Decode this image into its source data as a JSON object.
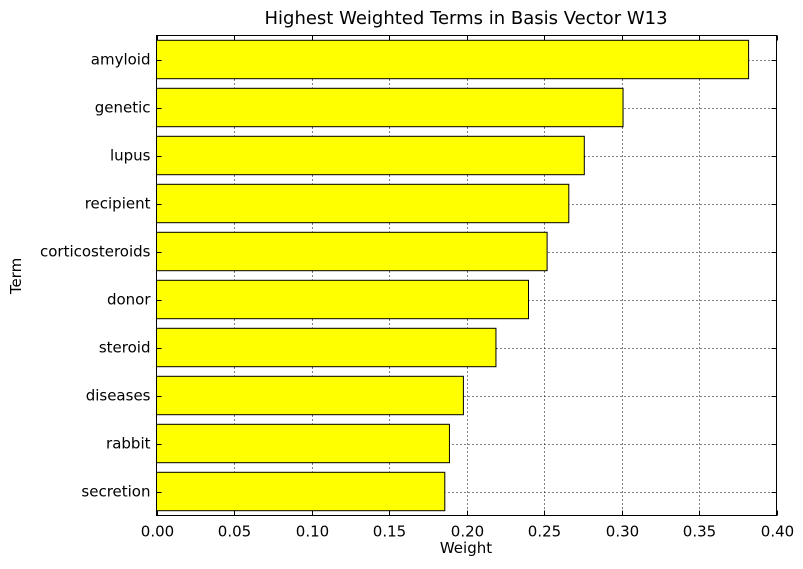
{
  "chart_data": {
    "type": "bar",
    "orientation": "horizontal",
    "title": "Highest Weighted Terms in Basis Vector W13",
    "xlabel": "Weight",
    "ylabel": "Term",
    "xlim": [
      0.0,
      0.4
    ],
    "xticks": [
      "0.00",
      "0.05",
      "0.10",
      "0.15",
      "0.20",
      "0.25",
      "0.30",
      "0.35",
      "0.40"
    ],
    "categories": [
      "amyloid",
      "genetic",
      "lupus",
      "recipient",
      "corticosteroids",
      "donor",
      "steroid",
      "diseases",
      "rabbit",
      "secretion"
    ],
    "values": [
      0.382,
      0.301,
      0.276,
      0.266,
      0.252,
      0.24,
      0.219,
      0.198,
      0.189,
      0.186
    ],
    "bar_color": "#ffff00",
    "grid": true
  }
}
